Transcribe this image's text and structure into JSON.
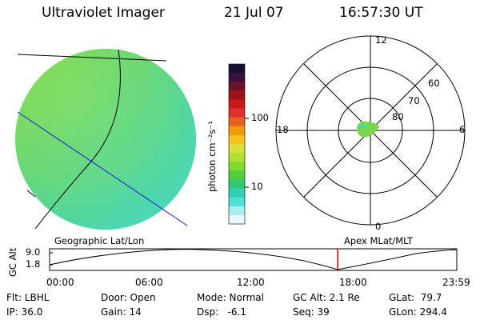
{
  "header": {
    "instrument": "Ultraviolet Imager",
    "date": "21 Jul 07",
    "time": "16:57:30 UT"
  },
  "colorbar": {
    "unit_label": "photon cm⁻²s⁻¹",
    "ticks": [
      "100",
      "10"
    ],
    "colors": [
      "#1a1030",
      "#3a1040",
      "#70102a",
      "#a01018",
      "#c81818",
      "#e03030",
      "#e86020",
      "#f09a10",
      "#f5c020",
      "#d8e040",
      "#b0e030",
      "#80d830",
      "#50d040",
      "#30c870",
      "#30d0b0",
      "#50e0d8",
      "#a8eeee",
      "#e6fafa"
    ]
  },
  "polar_plot": {
    "mlt_labels": [
      "12",
      "18",
      "6",
      "0"
    ],
    "mlat_labels": [
      "60",
      "70",
      "80"
    ]
  },
  "timeline": {
    "y_axis_label": "GC Alt",
    "y_ticks": [
      "9.0",
      "1.8"
    ],
    "left_label": "Geographic Lat/Lon",
    "right_label": "Apex MLat/MLT",
    "x_ticks": [
      "00:00",
      "06:00",
      "12:00",
      "18:00",
      "23:59"
    ],
    "marker_color": "#e00000"
  },
  "info": {
    "flt": "Flt: LBHL",
    "ip": "IP: 36.0",
    "door": "Door: Open",
    "gain": "Gain: 14",
    "mode": "Mode: Normal",
    "dsp": "Dsp:   -6.1",
    "gc_alt": "GC Alt: 2.1 Re",
    "seq": "Seq: 39",
    "glat": "GLat:  79.7",
    "glon": "GLon: 294.4"
  },
  "colors": {
    "disk_main": "#8adf3a",
    "disk_cyan": "#40d8c8",
    "blue_line": "#1a1acc"
  }
}
